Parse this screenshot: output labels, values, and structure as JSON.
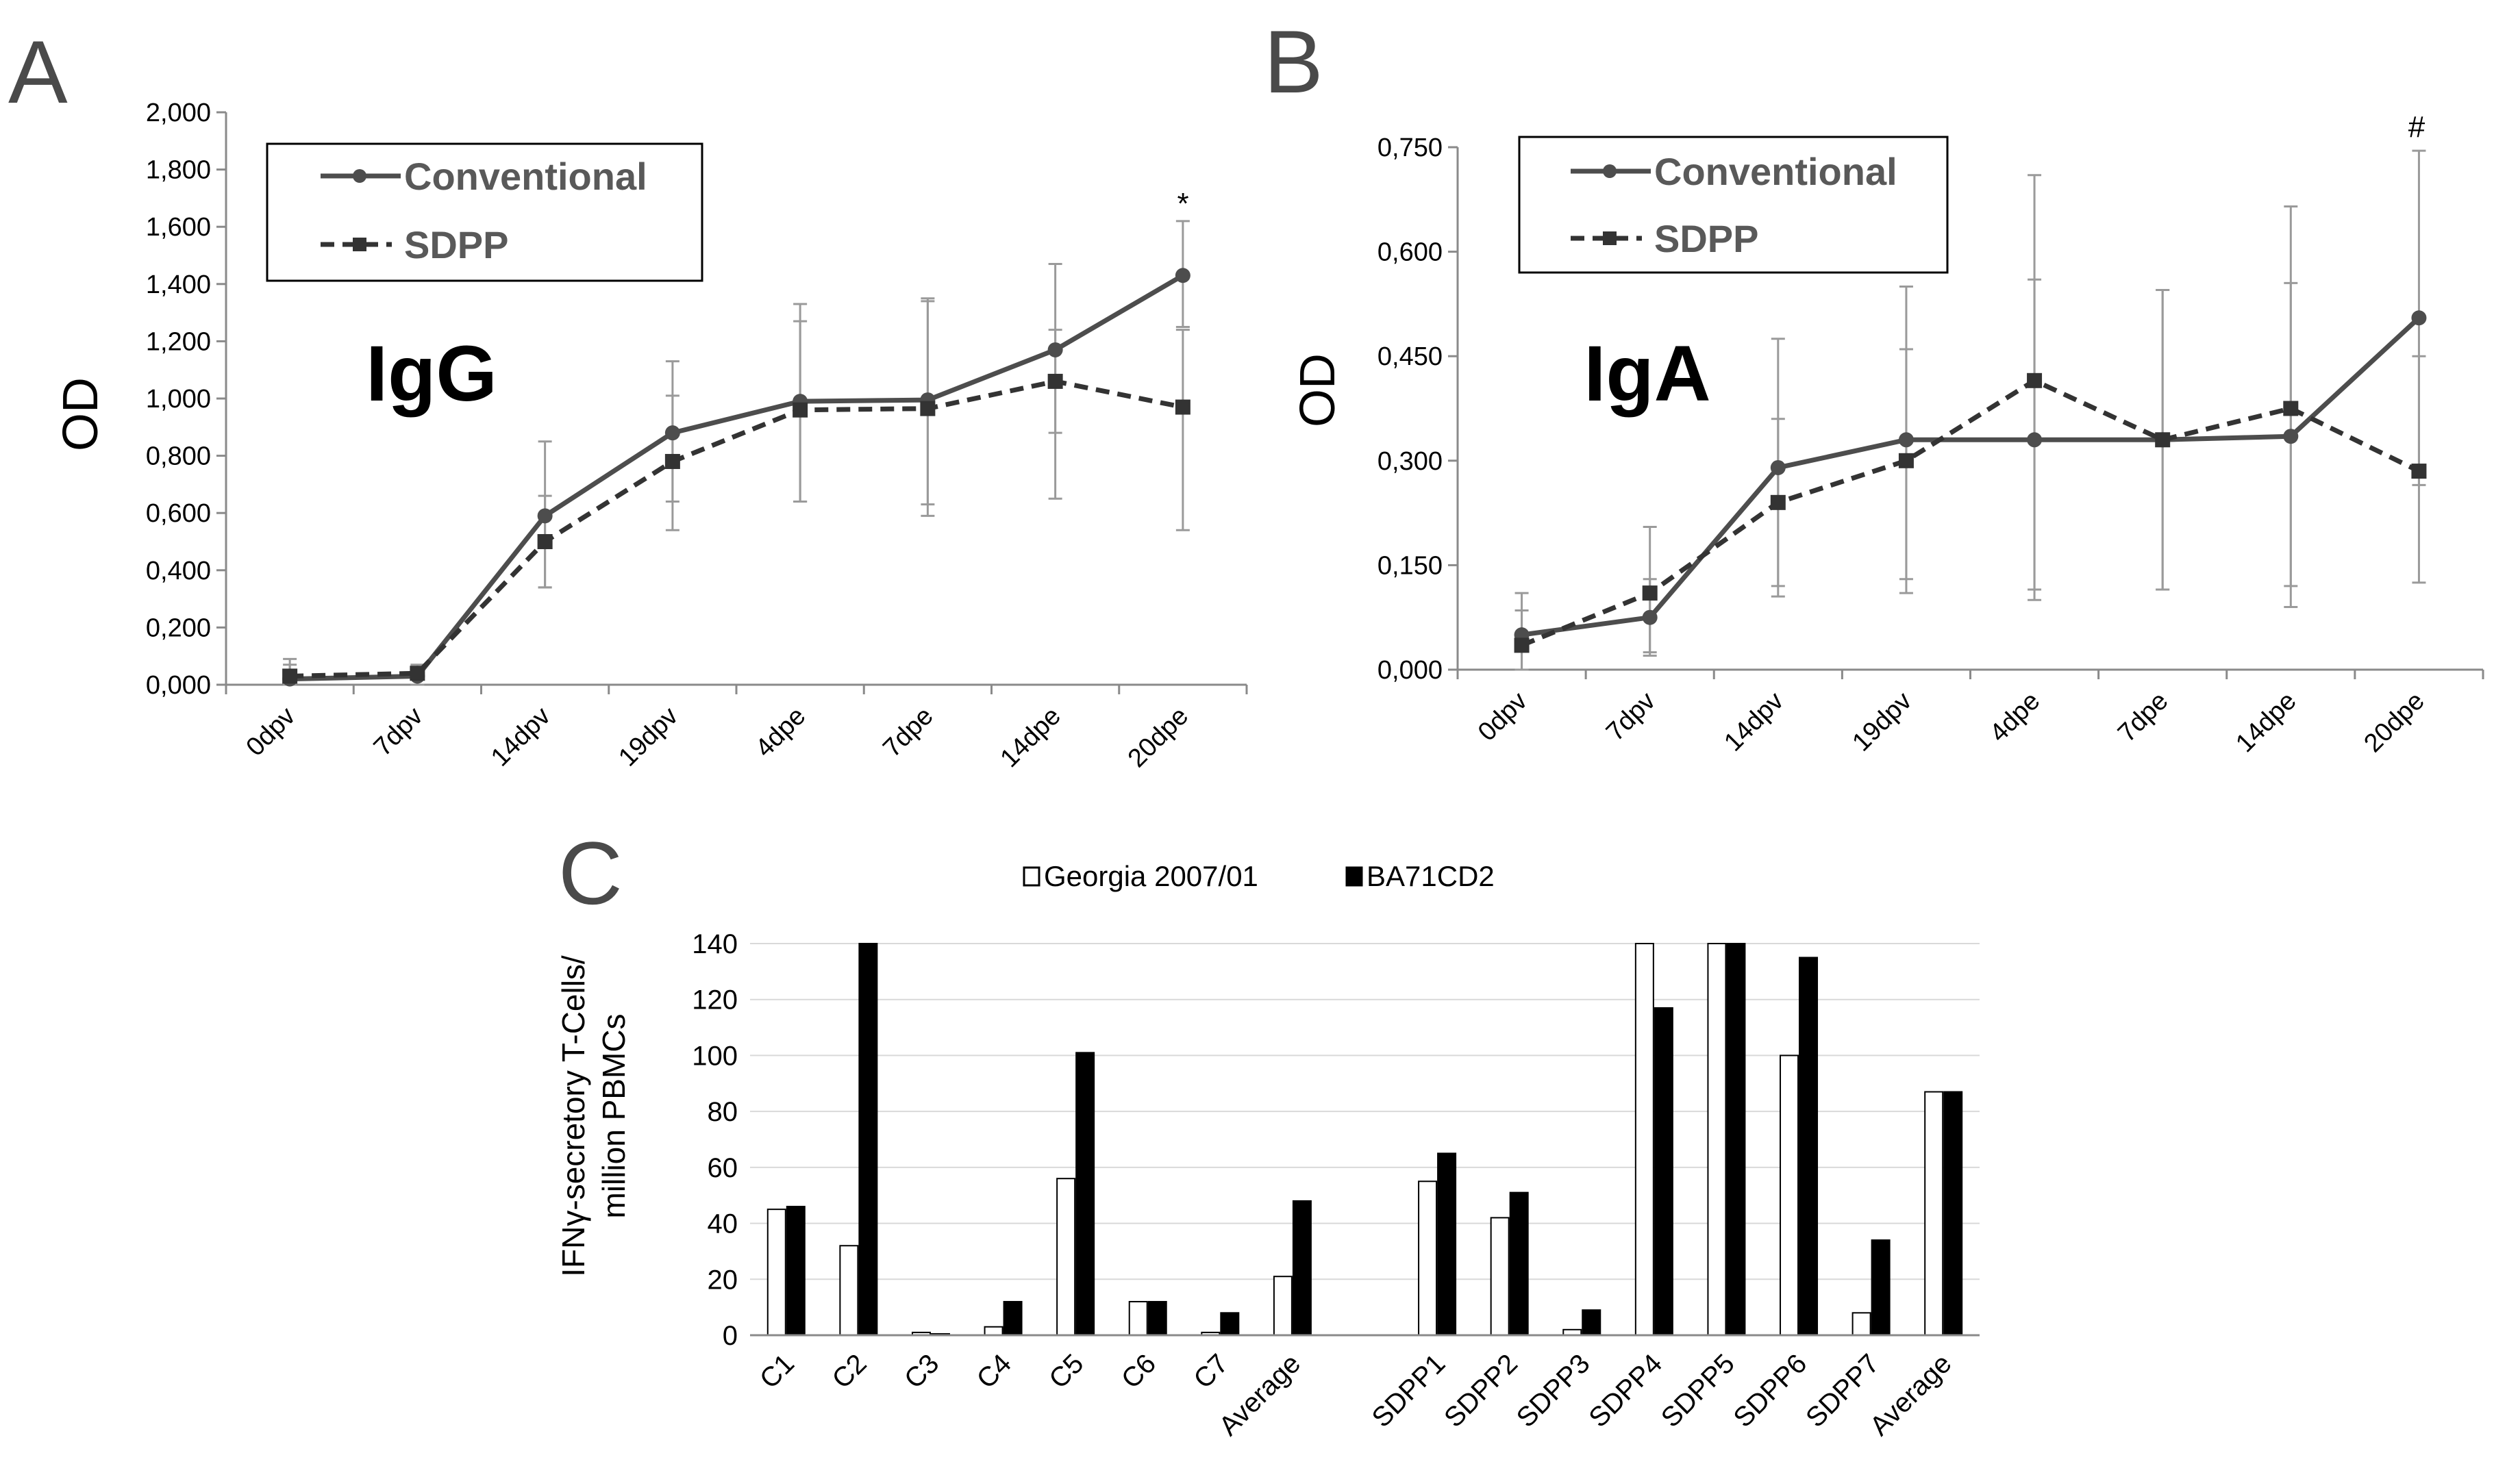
{
  "chart_data": [
    {
      "panel": "A",
      "type": "line",
      "title": "IgG",
      "xlabel": "",
      "ylabel": "OD",
      "ylim": [
        0,
        2
      ],
      "yticks": [
        "0,000",
        "0,200",
        "0,400",
        "0,600",
        "0,800",
        "1,000",
        "1,200",
        "1,400",
        "1,600",
        "1,800",
        "2,000"
      ],
      "categories": [
        "0dpv",
        "7dpv",
        "14dpv",
        "19dpv",
        "4dpe",
        "7dpe",
        "14dpe",
        "20dpe"
      ],
      "series": [
        {
          "name": "Conventional",
          "style": "solid-circle",
          "values": [
            0.02,
            0.03,
            0.59,
            0.88,
            0.99,
            0.995,
            1.17,
            1.43
          ],
          "error_upper": [
            0.07,
            0.06,
            0.85,
            1.13,
            1.33,
            1.35,
            1.47,
            1.62
          ],
          "error_lower": [
            0.0,
            0.0,
            0.34,
            0.64,
            0.64,
            0.63,
            0.88,
            1.25
          ]
        },
        {
          "name": "SDPP",
          "style": "dashed-square",
          "values": [
            0.03,
            0.04,
            0.5,
            0.78,
            0.96,
            0.965,
            1.06,
            0.97
          ],
          "error_upper": [
            0.09,
            0.07,
            0.66,
            1.01,
            1.27,
            1.34,
            1.24,
            1.24
          ],
          "error_lower": [
            0.0,
            0.0,
            0.34,
            0.54,
            0.64,
            0.59,
            0.65,
            0.54
          ]
        }
      ],
      "legend": {
        "placement": "top-left",
        "entries": [
          "Conventional",
          "SDPP"
        ]
      },
      "annotations": [
        {
          "text": "*",
          "category": "20dpe",
          "value": 1.68
        }
      ]
    },
    {
      "panel": "B",
      "type": "line",
      "title": "IgA",
      "xlabel": "",
      "ylabel": "OD",
      "ylim": [
        0,
        0.75
      ],
      "yticks": [
        "0,000",
        "0,150",
        "0,300",
        "0,450",
        "0,600",
        "0,750"
      ],
      "categories": [
        "0dpv",
        "7dpv",
        "14dpv",
        "19dpv",
        "4dpe",
        "7dpe",
        "14dpe",
        "20dpe"
      ],
      "series": [
        {
          "name": "Conventional",
          "style": "solid-circle",
          "values": [
            0.05,
            0.075,
            0.29,
            0.33,
            0.33,
            0.33,
            0.335,
            0.505
          ],
          "error_upper": [
            0.11,
            0.13,
            0.475,
            0.55,
            0.56,
            0.545,
            0.555,
            0.745
          ],
          "error_lower": [
            0.0,
            0.02,
            0.105,
            0.11,
            0.1,
            0.115,
            0.12,
            0.265
          ]
        },
        {
          "name": "SDPP",
          "style": "dashed-square",
          "values": [
            0.035,
            0.11,
            0.24,
            0.3,
            0.415,
            0.33,
            0.375,
            0.285
          ],
          "error_upper": [
            0.085,
            0.205,
            0.36,
            0.46,
            0.71,
            0.545,
            0.665,
            0.45
          ],
          "error_lower": [
            0.0,
            0.025,
            0.12,
            0.13,
            0.115,
            0.115,
            0.09,
            0.125
          ]
        }
      ],
      "legend": {
        "placement": "top-left",
        "entries": [
          "Conventional",
          "SDPP"
        ]
      },
      "annotations": [
        {
          "text": "#",
          "category": "20dpe",
          "value": 0.775
        }
      ]
    },
    {
      "panel": "C",
      "type": "bar",
      "title": "",
      "xlabel": "",
      "ylabel_lines": [
        "IFNγ-secretory T-Cells/",
        "million  PBMCs"
      ],
      "ylim": [
        0,
        140
      ],
      "yticks": [
        "0",
        "20",
        "40",
        "60",
        "80",
        "100",
        "120",
        "140"
      ],
      "grid": true,
      "categories": [
        "C1",
        "C2",
        "C3",
        "C4",
        "C5",
        "C6",
        "C7",
        "Average",
        "",
        "SDPP1",
        "SDPP2",
        "SDPP3",
        "SDPP4",
        "SDPP5",
        "SDPP6",
        "SDPP7",
        "Average"
      ],
      "series": [
        {
          "name": "Georgia 2007/01",
          "color": "#ffffff",
          "values": [
            45,
            32,
            1,
            3,
            56,
            12,
            1,
            21,
            null,
            55,
            42,
            2,
            140,
            140,
            100,
            8,
            87
          ]
        },
        {
          "name": "BA71CD2",
          "color": "#000000",
          "values": [
            46,
            140,
            0.5,
            12,
            101,
            12,
            8,
            48,
            null,
            65,
            51,
            9,
            117,
            140,
            135,
            34,
            87
          ]
        }
      ],
      "legend": {
        "placement": "top-center",
        "entries": [
          "Georgia 2007/01",
          "BA71CD2"
        ]
      }
    }
  ],
  "panel_letters": {
    "a": "A",
    "b": "B",
    "c": "C"
  },
  "colors": {
    "line": "#4d4d4d",
    "axis": "#8a8a8a",
    "error_bar": "#9a9a9a",
    "bar_white": "#ffffff",
    "bar_black": "#000000"
  }
}
